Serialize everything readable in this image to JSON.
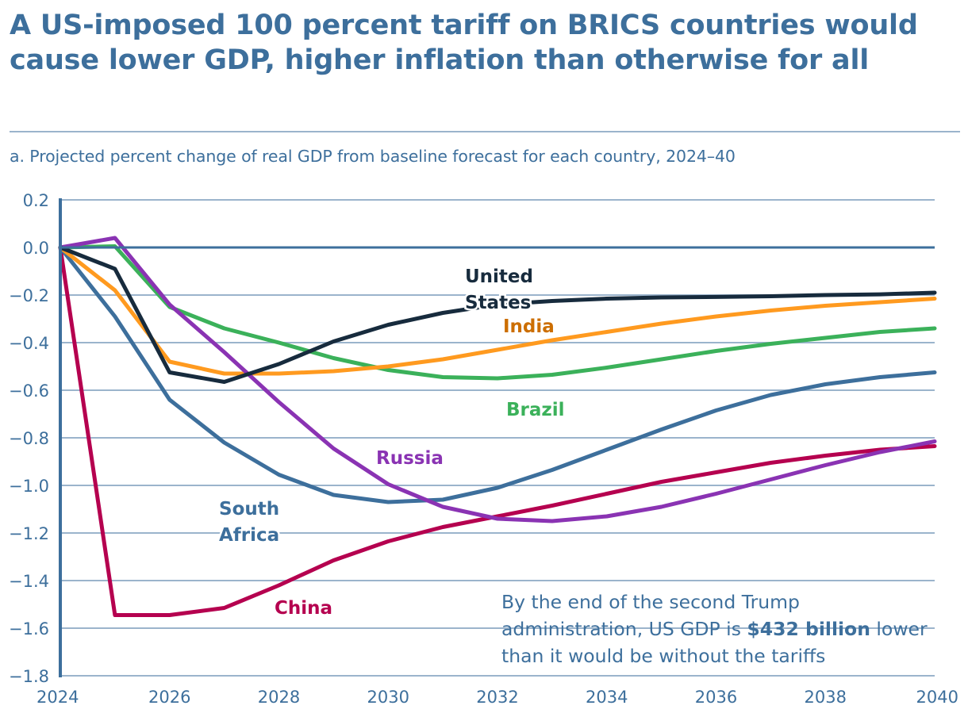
{
  "title": "A US-imposed 100 percent tariff on BRICS countries would cause lower GDP, higher inflation than otherwise for all",
  "subtitle": "a. Projected percent change of real GDP from baseline forecast for each country, 2024–40",
  "annotation": {
    "before": "By the end of the second Trump administration, US GDP is ",
    "bold": "$432 billion",
    "after": " lower than it would be without the tariffs"
  },
  "colors": {
    "axis": "#3d6f9c",
    "grid": "#9bb4cc",
    "text": "#3d6f9c"
  },
  "chart_data": {
    "type": "line",
    "title": "a. Projected percent change of real GDP from baseline forecast for each country, 2024–40",
    "xlabel": "",
    "ylabel": "",
    "x": [
      2024,
      2025,
      2026,
      2027,
      2028,
      2029,
      2030,
      2031,
      2032,
      2033,
      2034,
      2035,
      2036,
      2037,
      2038,
      2039,
      2040
    ],
    "xticks": [
      2024,
      2026,
      2028,
      2030,
      2032,
      2034,
      2036,
      2038,
      2040
    ],
    "xtick_labels": [
      "2024",
      "2026",
      "2028",
      "2030",
      "2032",
      "2034",
      "2036",
      "2038",
      "2040"
    ],
    "xlim": [
      2024,
      2040
    ],
    "ylim": [
      -1.8,
      0.2
    ],
    "yticks": [
      0.2,
      0.0,
      -0.2,
      -0.4,
      -0.6,
      -0.8,
      -1.0,
      -1.2,
      -1.4,
      -1.6,
      -1.8
    ],
    "ytick_labels": [
      "0.2",
      "0.0",
      "−0.2",
      "−0.4",
      "−0.6",
      "−0.8",
      "−1.0",
      "−1.2",
      "−1.4",
      "−1.6",
      "−1.8"
    ],
    "grid": true,
    "legend": "inline labels",
    "series": [
      {
        "name": "China",
        "label": "China",
        "color": "#b5004f",
        "label_color": "#b5004f",
        "values": [
          0,
          -1.545,
          -1.545,
          -1.515,
          -1.42,
          -1.315,
          -1.235,
          -1.175,
          -1.13,
          -1.085,
          -1.035,
          -0.985,
          -0.945,
          -0.905,
          -0.875,
          -0.85,
          -0.835
        ]
      },
      {
        "name": "South Africa",
        "label": "South Africa",
        "label_lines": [
          "South",
          "Africa"
        ],
        "color": "#3d6f9c",
        "label_color": "#3d6f9c",
        "values": [
          0,
          -0.29,
          -0.64,
          -0.82,
          -0.955,
          -1.04,
          -1.07,
          -1.06,
          -1.01,
          -0.935,
          -0.85,
          -0.765,
          -0.685,
          -0.62,
          -0.575,
          -0.545,
          -0.525
        ]
      },
      {
        "name": "Brazil",
        "label": "Brazil",
        "color": "#3bb15a",
        "label_color": "#3bb15a",
        "values": [
          0,
          0.005,
          -0.25,
          -0.34,
          -0.4,
          -0.465,
          -0.515,
          -0.545,
          -0.55,
          -0.535,
          -0.505,
          -0.47,
          -0.435,
          -0.405,
          -0.38,
          -0.355,
          -0.34
        ]
      },
      {
        "name": "India",
        "label": "India",
        "color": "#ff9a1f",
        "label_color": "#cc6e00",
        "values": [
          0,
          -0.18,
          -0.48,
          -0.53,
          -0.53,
          -0.52,
          -0.5,
          -0.47,
          -0.43,
          -0.39,
          -0.355,
          -0.32,
          -0.29,
          -0.265,
          -0.245,
          -0.23,
          -0.215
        ]
      },
      {
        "name": "Russia",
        "label": "Russia",
        "color": "#8a33b3",
        "label_color": "#8a33b3",
        "values": [
          0,
          0.04,
          -0.24,
          -0.44,
          -0.65,
          -0.845,
          -0.995,
          -1.09,
          -1.14,
          -1.15,
          -1.13,
          -1.09,
          -1.035,
          -0.975,
          -0.915,
          -0.86,
          -0.815
        ]
      },
      {
        "name": "United States",
        "label": "United States",
        "label_lines": [
          "United",
          "States"
        ],
        "color": "#172b3d",
        "label_color": "#172b3d",
        "values": [
          0,
          -0.09,
          -0.525,
          -0.565,
          -0.49,
          -0.395,
          -0.325,
          -0.275,
          -0.24,
          -0.225,
          -0.215,
          -0.21,
          -0.208,
          -0.205,
          -0.2,
          -0.197,
          -0.19
        ]
      }
    ]
  }
}
